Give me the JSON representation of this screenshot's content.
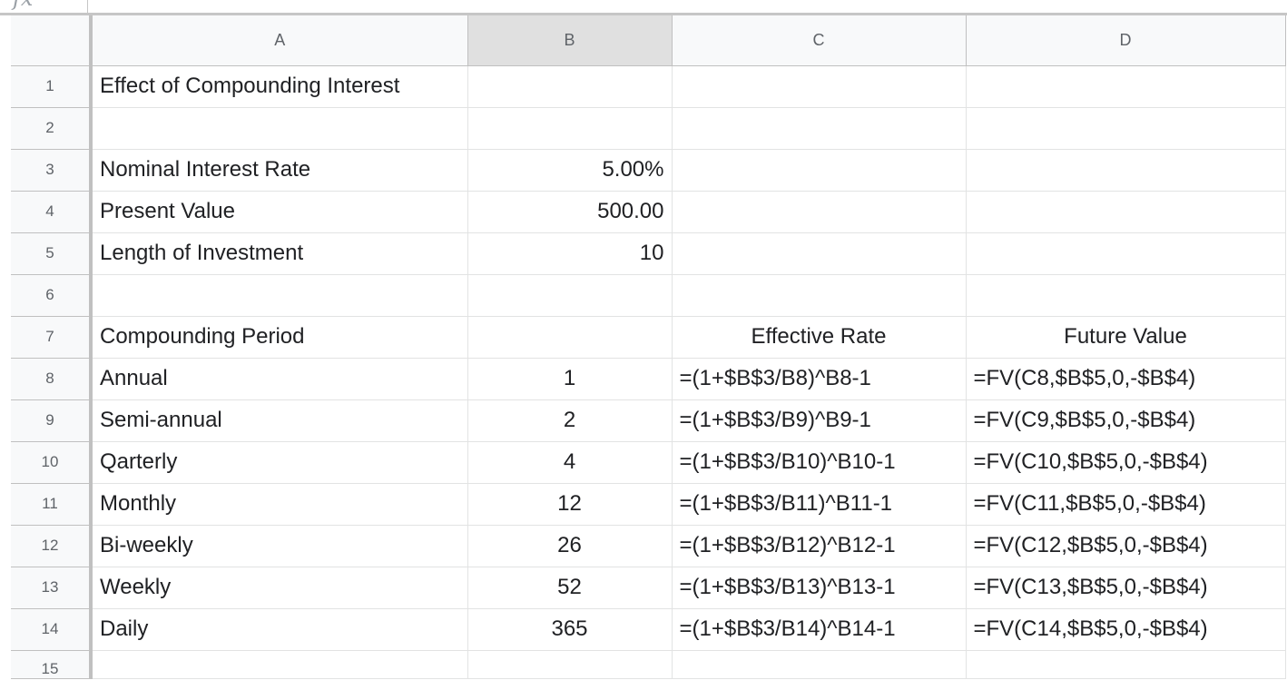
{
  "formula_bar": {
    "icon": "fx-icon"
  },
  "columns": [
    "A",
    "B",
    "C",
    "D"
  ],
  "rows": [
    {
      "n": "1",
      "a": "Effect of Compounding Interest",
      "b": "",
      "c": "",
      "d": ""
    },
    {
      "n": "2",
      "a": "",
      "b": "",
      "c": "",
      "d": ""
    },
    {
      "n": "3",
      "a": "Nominal Interest Rate",
      "b": "5.00%",
      "c": "",
      "d": ""
    },
    {
      "n": "4",
      "a": "Present Value",
      "b": "500.00",
      "c": "",
      "d": ""
    },
    {
      "n": "5",
      "a": "Length of Investment",
      "b": "10",
      "c": "",
      "d": ""
    },
    {
      "n": "6",
      "a": "",
      "b": "",
      "c": "",
      "d": ""
    },
    {
      "n": "7",
      "a": "Compounding Period",
      "b": "",
      "c": "Effective Rate",
      "d": "Future Value"
    },
    {
      "n": "8",
      "a": "Annual",
      "b": "1",
      "c": "=(1+$B$3/B8)^B8-1",
      "d": "=FV(C8,$B$5,0,-$B$4)"
    },
    {
      "n": "9",
      "a": "Semi-annual",
      "b": "2",
      "c": "=(1+$B$3/B9)^B9-1",
      "d": "=FV(C9,$B$5,0,-$B$4)"
    },
    {
      "n": "10",
      "a": "Qarterly",
      "b": "4",
      "c": "=(1+$B$3/B10)^B10-1",
      "d": "=FV(C10,$B$5,0,-$B$4)"
    },
    {
      "n": "11",
      "a": "Monthly",
      "b": "12",
      "c": "=(1+$B$3/B11)^B11-1",
      "d": "=FV(C11,$B$5,0,-$B$4)"
    },
    {
      "n": "12",
      "a": "Bi-weekly",
      "b": "26",
      "c": "=(1+$B$3/B12)^B12-1",
      "d": "=FV(C12,$B$5,0,-$B$4)"
    },
    {
      "n": "13",
      "a": "Weekly",
      "b": "52",
      "c": "=(1+$B$3/B13)^B13-1",
      "d": "=FV(C13,$B$5,0,-$B$4)"
    },
    {
      "n": "14",
      "a": "Daily",
      "b": "365",
      "c": "=(1+$B$3/B14)^B14-1",
      "d": "=FV(C14,$B$5,0,-$B$4)"
    },
    {
      "n": "15",
      "a": "",
      "b": "",
      "c": "",
      "d": ""
    }
  ]
}
